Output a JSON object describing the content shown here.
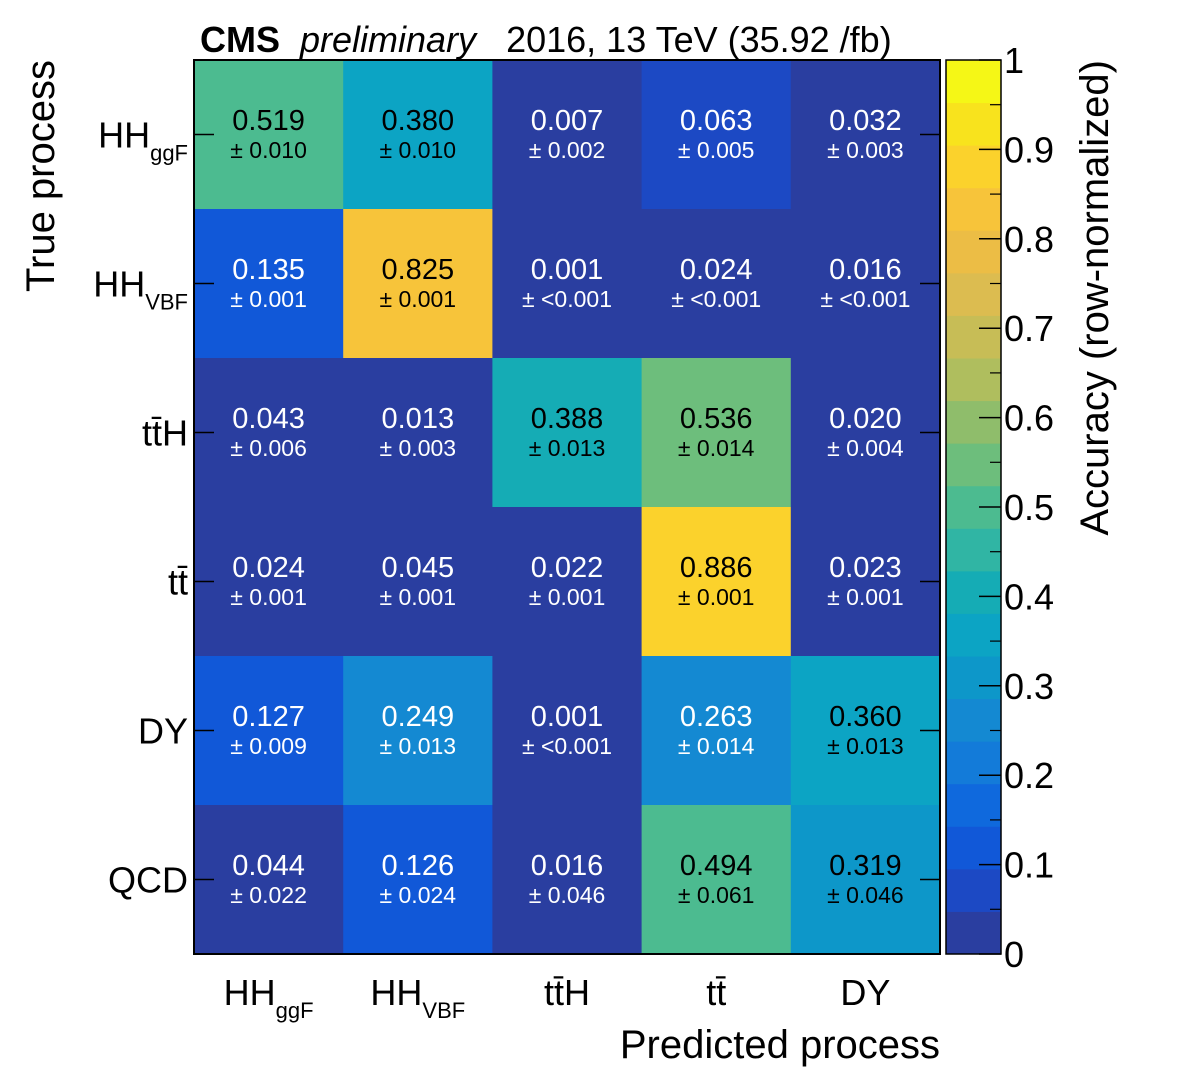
{
  "header": {
    "cms": "CMS",
    "preliminary": "preliminary",
    "energy": "2016, 13 TeV (35.92 /fb)"
  },
  "chart_data": {
    "type": "heatmap",
    "xlabel": "Predicted process",
    "ylabel": "True process",
    "zlabel": "Accuracy (row-normalized)",
    "zlim": [
      0,
      1
    ],
    "colorbar_ticks": [
      "0",
      "0.1",
      "0.2",
      "0.3",
      "0.4",
      "0.5",
      "0.6",
      "0.7",
      "0.8",
      "0.9",
      "1"
    ],
    "x_categories": [
      {
        "main": "HH",
        "sub": "ggF"
      },
      {
        "main": "HH",
        "sub": "VBF"
      },
      {
        "main": "tt̄H",
        "sub": ""
      },
      {
        "main": "tt̄",
        "sub": ""
      },
      {
        "main": "DY",
        "sub": ""
      }
    ],
    "y_categories": [
      {
        "main": "HH",
        "sub": "ggF"
      },
      {
        "main": "HH",
        "sub": "VBF"
      },
      {
        "main": "tt̄H",
        "sub": ""
      },
      {
        "main": "tt̄",
        "sub": ""
      },
      {
        "main": "DY",
        "sub": ""
      },
      {
        "main": "QCD",
        "sub": ""
      }
    ],
    "values": [
      [
        0.519,
        0.38,
        0.007,
        0.063,
        0.032
      ],
      [
        0.135,
        0.825,
        0.001,
        0.024,
        0.016
      ],
      [
        0.043,
        0.013,
        0.388,
        0.536,
        0.02
      ],
      [
        0.024,
        0.045,
        0.022,
        0.886,
        0.023
      ],
      [
        0.127,
        0.249,
        0.001,
        0.263,
        0.36
      ],
      [
        0.044,
        0.126,
        0.016,
        0.494,
        0.319
      ]
    ],
    "value_labels": [
      [
        "0.519",
        "0.380",
        "0.007",
        "0.063",
        "0.032"
      ],
      [
        "0.135",
        "0.825",
        "0.001",
        "0.024",
        "0.016"
      ],
      [
        "0.043",
        "0.013",
        "0.388",
        "0.536",
        "0.020"
      ],
      [
        "0.024",
        "0.045",
        "0.022",
        "0.886",
        "0.023"
      ],
      [
        "0.127",
        "0.249",
        "0.001",
        "0.263",
        "0.360"
      ],
      [
        "0.044",
        "0.126",
        "0.016",
        "0.494",
        "0.319"
      ]
    ],
    "uncertainties": [
      [
        "± 0.010",
        "± 0.010",
        "± 0.002",
        "± 0.005",
        "± 0.003"
      ],
      [
        "± 0.001",
        "± 0.001",
        "± <0.001",
        "± <0.001",
        "± <0.001"
      ],
      [
        "± 0.006",
        "± 0.003",
        "± 0.013",
        "± 0.014",
        "± 0.004"
      ],
      [
        "± 0.001",
        "± 0.001",
        "± 0.001",
        "± 0.001",
        "± 0.001"
      ],
      [
        "± 0.009",
        "± 0.013",
        "± <0.001",
        "± 0.014",
        "± 0.013"
      ],
      [
        "± 0.022",
        "± 0.024",
        "± 0.046",
        "± 0.061",
        "± 0.046"
      ]
    ],
    "palette": [
      "#2a3ea0",
      "#1c49c4",
      "#1158d8",
      "#0f69dd",
      "#137bd9",
      "#1489d2",
      "#0d97c9",
      "#0ca4c4",
      "#15acb5",
      "#30b5a4",
      "#4cbb90",
      "#6dbe7c",
      "#8fbd6b",
      "#afbe5e",
      "#c7bd56",
      "#dcbc50",
      "#ecbd45",
      "#f7c43a",
      "#fbd22c",
      "#f8e31d",
      "#f5f716"
    ]
  }
}
